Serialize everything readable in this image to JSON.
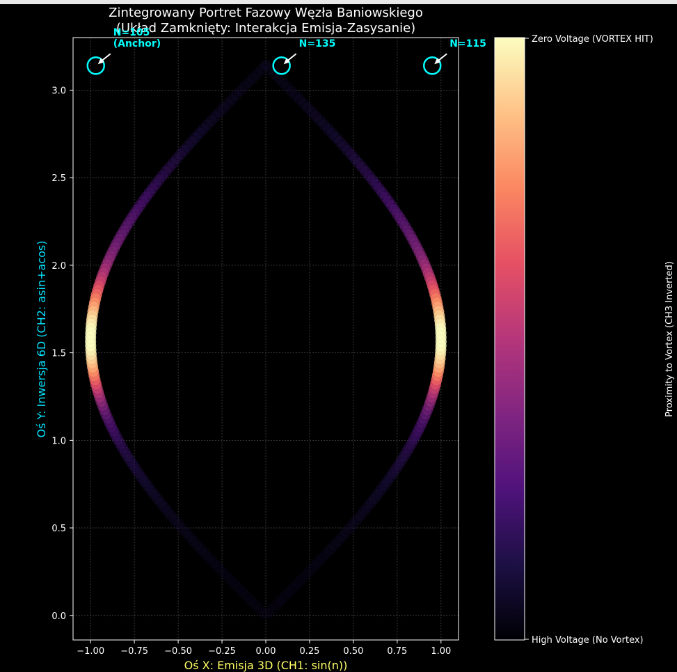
{
  "chart_data": {
    "type": "scatter",
    "title": "Zintegrowany Portret Fazowy Węzła Baniowskiego",
    "subtitle": "(Układ Zamknięty: Interakcja Emisja-Zasysanie)",
    "xlabel": "Oś X: Emisja 3D (CH1: sin(n))",
    "ylabel": "Oś Y: Inwersja 6D (CH2: asin+acos)",
    "xlim": [
      -1.1,
      1.1
    ],
    "ylim": [
      -0.14,
      3.3
    ],
    "x_ticks": [
      -1.0,
      -0.75,
      -0.5,
      -0.25,
      0.0,
      0.25,
      0.5,
      0.75,
      1.0
    ],
    "x_tick_labels": [
      "−1.00",
      "−0.75",
      "−0.50",
      "−0.25",
      "0.00",
      "0.25",
      "0.50",
      "0.75",
      "1.00"
    ],
    "y_ticks": [
      0.0,
      0.5,
      1.0,
      1.5,
      2.0,
      2.5,
      3.0
    ],
    "y_tick_labels": [
      "0.0",
      "0.5",
      "1.0",
      "1.5",
      "2.0",
      "2.5",
      "3.0"
    ],
    "grid": true,
    "series": [
      {
        "description": "points (x = sin(t), y = |t|) for t in [-pi, pi], color = proximity to vortex",
        "t_range": [
          -3.14159,
          3.14159
        ],
        "samples": 260,
        "hot_spots_y": [
          1.5708
        ]
      }
    ],
    "annotations": [
      {
        "label": "N=105",
        "label2": "(Anchor)",
        "x": -0.97,
        "y": 3.14
      },
      {
        "label": "N=135",
        "x": 0.09,
        "y": 3.14
      },
      {
        "label": "N=115",
        "x": 0.95,
        "y": 3.14
      }
    ],
    "colorbar": {
      "label": "Proximity to Vortex (CH3 Inverted)",
      "top_label": "Zero Voltage (VORTEX HIT)",
      "bottom_label": "High Voltage (No Vortex)",
      "range": [
        0,
        1
      ],
      "colors": [
        "#000004",
        "#1c1044",
        "#4f127b",
        "#812581",
        "#b5367a",
        "#e55064",
        "#fb8761",
        "#fec287",
        "#fcfdbf"
      ]
    },
    "colors": {
      "background": "#000000",
      "axes": "#ffffff",
      "title": "#ffffff",
      "xlabel": "#ffff66",
      "ylabel": "#00e5ff",
      "annotation": "#00ffff",
      "arrow": "#ffffff",
      "grid": "#444444"
    }
  }
}
